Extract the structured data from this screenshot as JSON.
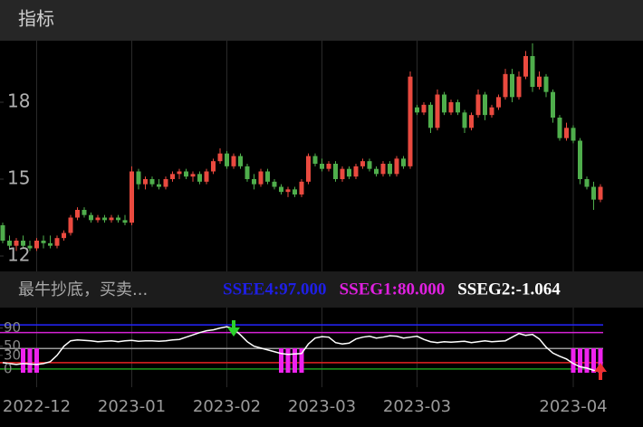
{
  "chart_data": {
    "type": "candlestick",
    "title": "指标",
    "ylim": [
      11.4,
      20.4
    ],
    "yticks": [
      12,
      15,
      18
    ],
    "up_color": "#ea4a3f",
    "down_color": "#4fae4c",
    "x_labels": [
      "2022-12",
      "2023-01",
      "2023-02",
      "2023-03",
      "2023-03",
      "2023-04"
    ],
    "x_label_indices": [
      5,
      19,
      33,
      47,
      61,
      84
    ],
    "candles": [
      [
        13.2,
        13.3,
        12.5,
        12.6
      ],
      [
        12.6,
        12.8,
        12.3,
        12.4
      ],
      [
        12.4,
        12.7,
        12.2,
        12.6
      ],
      [
        12.6,
        12.8,
        12.3,
        12.4
      ],
      [
        12.4,
        12.6,
        12.2,
        12.3
      ],
      [
        12.3,
        12.7,
        12.2,
        12.6
      ],
      [
        12.6,
        12.8,
        12.3,
        12.5
      ],
      [
        12.5,
        12.8,
        12.3,
        12.4
      ],
      [
        12.4,
        12.8,
        12.3,
        12.7
      ],
      [
        12.7,
        13.0,
        12.6,
        12.9
      ],
      [
        12.9,
        13.6,
        12.8,
        13.5
      ],
      [
        13.5,
        13.9,
        13.4,
        13.8
      ],
      [
        13.8,
        13.9,
        13.5,
        13.6
      ],
      [
        13.6,
        13.7,
        13.3,
        13.4
      ],
      [
        13.4,
        13.6,
        13.3,
        13.5
      ],
      [
        13.5,
        13.6,
        13.3,
        13.4
      ],
      [
        13.4,
        13.6,
        13.3,
        13.5
      ],
      [
        13.5,
        13.6,
        13.3,
        13.4
      ],
      [
        13.4,
        13.6,
        13.2,
        13.3
      ],
      [
        13.3,
        15.5,
        13.2,
        15.3
      ],
      [
        15.3,
        15.4,
        14.6,
        14.8
      ],
      [
        14.8,
        15.1,
        14.6,
        15.0
      ],
      [
        15.0,
        15.1,
        14.7,
        14.8
      ],
      [
        14.8,
        15.0,
        14.6,
        14.7
      ],
      [
        14.7,
        15.1,
        14.6,
        15.0
      ],
      [
        15.0,
        15.3,
        14.9,
        15.2
      ],
      [
        15.2,
        15.4,
        15.0,
        15.3
      ],
      [
        15.3,
        15.4,
        15.0,
        15.1
      ],
      [
        15.1,
        15.3,
        14.9,
        15.2
      ],
      [
        15.2,
        15.3,
        14.8,
        14.9
      ],
      [
        14.9,
        15.4,
        14.8,
        15.3
      ],
      [
        15.3,
        15.8,
        15.2,
        15.7
      ],
      [
        15.7,
        16.2,
        15.6,
        16.0
      ],
      [
        16.0,
        16.1,
        15.4,
        15.5
      ],
      [
        15.5,
        16.0,
        15.4,
        15.9
      ],
      [
        15.9,
        16.0,
        15.4,
        15.5
      ],
      [
        15.5,
        15.6,
        14.9,
        15.0
      ],
      [
        15.0,
        15.2,
        14.6,
        14.8
      ],
      [
        14.8,
        15.4,
        14.7,
        15.3
      ],
      [
        15.3,
        15.4,
        14.8,
        14.9
      ],
      [
        14.9,
        15.0,
        14.6,
        14.7
      ],
      [
        14.7,
        14.8,
        14.4,
        14.5
      ],
      [
        14.5,
        14.7,
        14.3,
        14.6
      ],
      [
        14.6,
        14.7,
        14.3,
        14.4
      ],
      [
        14.4,
        15.0,
        14.3,
        14.9
      ],
      [
        14.9,
        16.0,
        14.8,
        15.9
      ],
      [
        15.9,
        16.0,
        15.5,
        15.6
      ],
      [
        15.6,
        15.8,
        15.3,
        15.4
      ],
      [
        15.4,
        15.7,
        15.3,
        15.6
      ],
      [
        15.6,
        15.7,
        14.9,
        15.0
      ],
      [
        15.0,
        15.5,
        14.9,
        15.4
      ],
      [
        15.4,
        15.5,
        15.0,
        15.1
      ],
      [
        15.1,
        15.6,
        15.0,
        15.5
      ],
      [
        15.5,
        15.8,
        15.4,
        15.7
      ],
      [
        15.7,
        15.8,
        15.3,
        15.4
      ],
      [
        15.4,
        15.5,
        15.1,
        15.2
      ],
      [
        15.2,
        15.7,
        15.1,
        15.6
      ],
      [
        15.6,
        15.7,
        15.1,
        15.2
      ],
      [
        15.2,
        15.9,
        15.1,
        15.8
      ],
      [
        15.8,
        15.9,
        15.4,
        15.5
      ],
      [
        15.5,
        19.2,
        15.4,
        19.0
      ],
      [
        17.8,
        17.9,
        17.5,
        17.6
      ],
      [
        17.6,
        18.0,
        17.5,
        17.9
      ],
      [
        17.9,
        18.0,
        16.8,
        17.0
      ],
      [
        17.0,
        18.5,
        16.9,
        18.3
      ],
      [
        18.3,
        18.4,
        17.5,
        17.6
      ],
      [
        17.6,
        18.1,
        17.5,
        18.0
      ],
      [
        18.0,
        18.1,
        17.5,
        17.6
      ],
      [
        17.6,
        17.7,
        16.8,
        17.0
      ],
      [
        17.0,
        17.6,
        16.9,
        17.5
      ],
      [
        17.5,
        18.5,
        17.4,
        18.3
      ],
      [
        18.3,
        18.4,
        17.3,
        17.5
      ],
      [
        17.5,
        17.9,
        17.4,
        17.8
      ],
      [
        17.8,
        18.3,
        17.7,
        18.2
      ],
      [
        18.2,
        19.3,
        18.1,
        19.1
      ],
      [
        19.1,
        19.3,
        18.0,
        18.2
      ],
      [
        18.2,
        19.2,
        18.1,
        19.0
      ],
      [
        19.0,
        20.0,
        18.9,
        19.8
      ],
      [
        19.8,
        20.3,
        18.4,
        18.6
      ],
      [
        18.6,
        19.2,
        18.5,
        19.0
      ],
      [
        19.0,
        19.1,
        18.2,
        18.4
      ],
      [
        18.4,
        18.5,
        17.2,
        17.4
      ],
      [
        17.4,
        17.5,
        16.5,
        16.6
      ],
      [
        16.6,
        17.2,
        16.5,
        17.0
      ],
      [
        17.0,
        17.1,
        16.4,
        16.5
      ],
      [
        16.5,
        16.6,
        14.8,
        15.0
      ],
      [
        15.0,
        15.1,
        14.6,
        14.7
      ],
      [
        14.7,
        14.9,
        13.8,
        14.2
      ],
      [
        14.2,
        14.8,
        14.1,
        14.7
      ]
    ],
    "indicator": {
      "name": "最牛抄底，买卖...",
      "readouts": [
        {
          "label": "SSEE4:97.000",
          "color": "#1f1fe6"
        },
        {
          "label": "SSEG1:80.000",
          "color": "#e020e0"
        },
        {
          "label": "SSEG2:-1.064",
          "color": "#ffffff"
        }
      ],
      "ylim": [
        -40,
        135
      ],
      "yticks": [
        0,
        30,
        50,
        90
      ],
      "ref_lines": [
        {
          "value": 97,
          "color": "#2424ff"
        },
        {
          "value": 80,
          "color": "#d622d6"
        },
        {
          "value": 45,
          "color": "#9a9a9a"
        },
        {
          "value": 14,
          "color": "#e52222"
        },
        {
          "value": 0,
          "color": "#1e9e1e"
        }
      ],
      "line_color": "#ffffff",
      "values": [
        14,
        12,
        10,
        12,
        11,
        10,
        12,
        16,
        30,
        50,
        62,
        64,
        63,
        62,
        60,
        61,
        62,
        60,
        62,
        63,
        61,
        62,
        62,
        61,
        62,
        64,
        65,
        70,
        75,
        80,
        84,
        86,
        90,
        93,
        88,
        75,
        60,
        50,
        46,
        42,
        38,
        34,
        32,
        33,
        34,
        55,
        68,
        71,
        70,
        58,
        55,
        57,
        66,
        70,
        72,
        68,
        70,
        73,
        72,
        68,
        70,
        72,
        65,
        60,
        58,
        60,
        59,
        60,
        61,
        58,
        60,
        62,
        60,
        61,
        62,
        70,
        78,
        74,
        76,
        66,
        48,
        35,
        28,
        22,
        12,
        5,
        2,
        -3,
        -6
      ],
      "signal_color": "#ee22ee",
      "buy_signals": [
        3,
        4,
        5,
        41,
        42,
        43,
        44,
        84,
        85,
        86,
        87,
        88
      ],
      "sell_arrow_index": 34,
      "buy_arrow_index": 88
    }
  }
}
